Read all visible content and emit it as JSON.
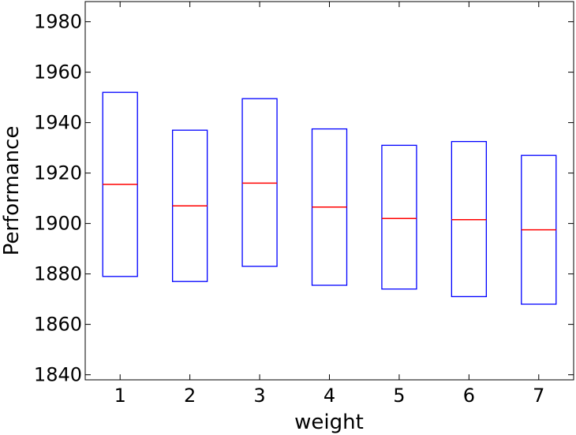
{
  "chart_data": {
    "type": "box",
    "title": "",
    "xlabel": "weight",
    "ylabel": "Performance",
    "xlim": [
      0.5,
      7.5
    ],
    "ylim": [
      1838,
      1988
    ],
    "yticks": [
      1840,
      1860,
      1880,
      1900,
      1920,
      1940,
      1960,
      1980
    ],
    "categories": [
      "1",
      "2",
      "3",
      "4",
      "5",
      "6",
      "7"
    ],
    "boxes": [
      {
        "x": 1,
        "q1": 1879,
        "median": 1915.5,
        "q3": 1952
      },
      {
        "x": 2,
        "q1": 1877,
        "median": 1907,
        "q3": 1937
      },
      {
        "x": 3,
        "q1": 1883,
        "median": 1916,
        "q3": 1949.5
      },
      {
        "x": 4,
        "q1": 1875.5,
        "median": 1906.5,
        "q3": 1937.5
      },
      {
        "x": 5,
        "q1": 1874,
        "median": 1902,
        "q3": 1931
      },
      {
        "x": 6,
        "q1": 1871,
        "median": 1901.5,
        "q3": 1932.5
      },
      {
        "x": 7,
        "q1": 1868,
        "median": 1897.5,
        "q3": 1927
      }
    ],
    "box_color": "#0000ff",
    "median_color": "#ff0000",
    "grid": false
  }
}
